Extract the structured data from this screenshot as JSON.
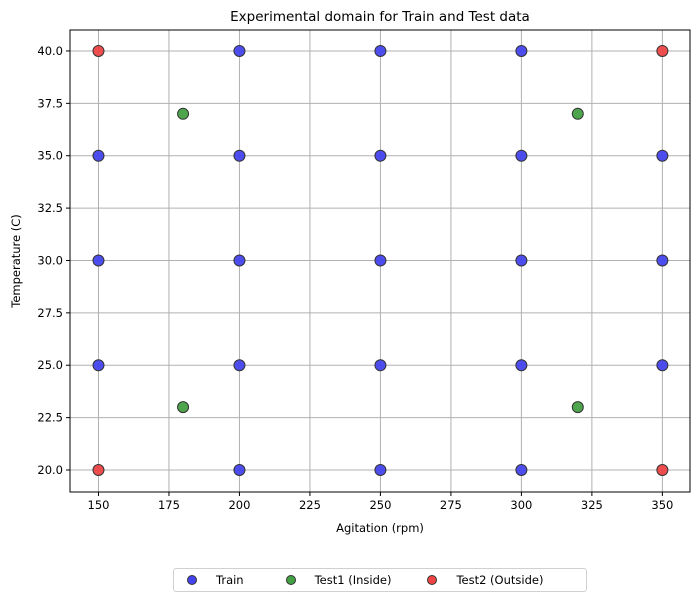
{
  "chart_data": {
    "type": "scatter",
    "title": "Experimental domain for Train and Test data",
    "xlabel": "Agitation (rpm)",
    "ylabel": "Temperature (C)",
    "xlim": [
      139.9,
      359.8
    ],
    "ylim": [
      18.95,
      41.0
    ],
    "xticks": [
      150,
      175,
      200,
      225,
      250,
      275,
      300,
      325,
      350
    ],
    "xtick_labels": [
      "150",
      "175",
      "200",
      "225",
      "250",
      "275",
      "300",
      "325",
      "350"
    ],
    "yticks": [
      20.0,
      22.5,
      25.0,
      27.5,
      30.0,
      32.5,
      35.0,
      37.5,
      40.0
    ],
    "ytick_labels": [
      "20.0",
      "22.5",
      "25.0",
      "27.5",
      "30.0",
      "32.5",
      "35.0",
      "37.5",
      "40.0"
    ],
    "grid": true,
    "legend_position": "below center, outside plot",
    "series": [
      {
        "name": "Train",
        "color": "#4444ee",
        "edgecolor": "#333333",
        "points": [
          [
            200,
            40
          ],
          [
            250,
            40
          ],
          [
            300,
            40
          ],
          [
            150,
            35
          ],
          [
            200,
            35
          ],
          [
            250,
            35
          ],
          [
            300,
            35
          ],
          [
            350,
            35
          ],
          [
            150,
            30
          ],
          [
            200,
            30
          ],
          [
            250,
            30
          ],
          [
            300,
            30
          ],
          [
            350,
            30
          ],
          [
            150,
            25
          ],
          [
            200,
            25
          ],
          [
            250,
            25
          ],
          [
            300,
            25
          ],
          [
            350,
            25
          ],
          [
            200,
            20
          ],
          [
            250,
            20
          ],
          [
            300,
            20
          ]
        ]
      },
      {
        "name": "Test1 (Inside)",
        "color": "#44a044",
        "edgecolor": "#333333",
        "points": [
          [
            180,
            37
          ],
          [
            320,
            37
          ],
          [
            180,
            23
          ],
          [
            320,
            23
          ]
        ]
      },
      {
        "name": "Test2 (Outside)",
        "color": "#ee4444",
        "edgecolor": "#333333",
        "points": [
          [
            150,
            40
          ],
          [
            350,
            40
          ],
          [
            150,
            20
          ],
          [
            350,
            20
          ]
        ]
      }
    ]
  },
  "legend": {
    "items": [
      {
        "label": "Train",
        "color": "#4444ee"
      },
      {
        "label": "Test1 (Inside)",
        "color": "#44a044"
      },
      {
        "label": "Test2 (Outside)",
        "color": "#ee4444"
      }
    ]
  }
}
